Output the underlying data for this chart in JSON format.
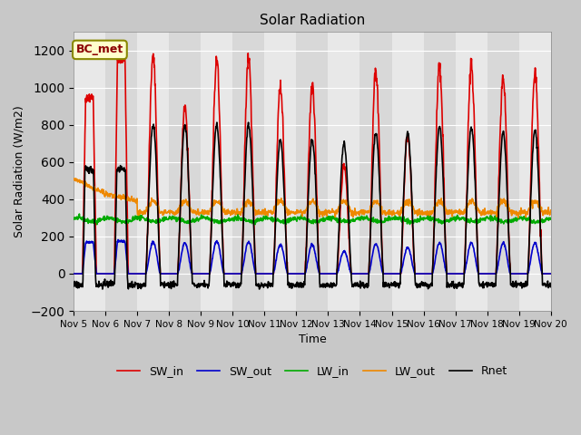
{
  "title": "Solar Radiation",
  "xlabel": "Time",
  "ylabel": "Solar Radiation (W/m2)",
  "ylim": [
    -200,
    1300
  ],
  "yticks": [
    -200,
    0,
    200,
    400,
    600,
    800,
    1000,
    1200
  ],
  "annotation_text": "BC_met",
  "lines": {
    "SW_in": {
      "color": "#dd0000",
      "lw": 1.2
    },
    "SW_out": {
      "color": "#0000cc",
      "lw": 1.2
    },
    "LW_in": {
      "color": "#00aa00",
      "lw": 1.2
    },
    "LW_out": {
      "color": "#ee8800",
      "lw": 1.2
    },
    "Rnet": {
      "color": "#000000",
      "lw": 1.2
    }
  },
  "legend_order": [
    "SW_in",
    "SW_out",
    "LW_in",
    "LW_out",
    "Rnet"
  ],
  "n_days": 15,
  "day_start": 5,
  "SW_in_peaks": [
    950,
    1160,
    1160,
    900,
    1150,
    1150,
    1000,
    1020,
    580,
    1080,
    750,
    1120,
    1120,
    1060,
    1080
  ],
  "SW_out_peaks": [
    170,
    175,
    170,
    165,
    175,
    170,
    155,
    155,
    120,
    160,
    140,
    165,
    165,
    165,
    165
  ],
  "LW_in_base": 290,
  "LW_out_base": 330,
  "Rnet_day0_flat": 560,
  "Rnet_day1_flat": 560,
  "Rnet_peaks": [
    560,
    560,
    800,
    800,
    800,
    800,
    720,
    720,
    700,
    760,
    760,
    790,
    790,
    760,
    770
  ],
  "band_colors": [
    "#e8e8e8",
    "#d8d8d8"
  ],
  "fig_bg": "#c8c8c8"
}
